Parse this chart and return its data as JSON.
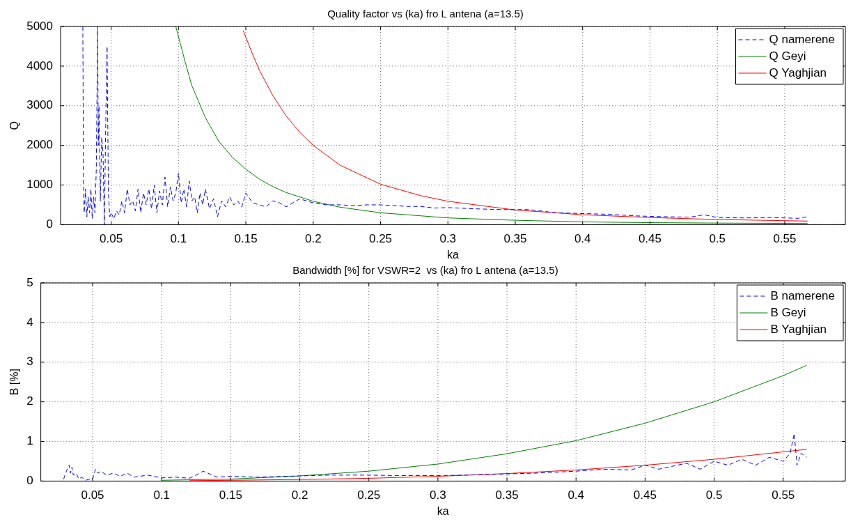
{
  "chart_data": [
    {
      "type": "line",
      "title": "Quality factor vs (ka) fro L antena (a=13.5)",
      "xlabel": "ka",
      "ylabel": "Q",
      "xlim": [
        0.0125,
        0.595
      ],
      "ylim": [
        0,
        5000
      ],
      "xticks": [
        0.05,
        0.1,
        0.15,
        0.2,
        0.25,
        0.3,
        0.35,
        0.4,
        0.45,
        0.5,
        0.55
      ],
      "yticks": [
        0,
        1000,
        2000,
        3000,
        4000,
        5000
      ],
      "grid": true,
      "legend": "top right",
      "series": [
        {
          "name": "Q namerene",
          "color": "#0000ff",
          "line_style": "dashed",
          "x": [
            0.029,
            0.0295,
            0.03,
            0.031,
            0.032,
            0.033,
            0.034,
            0.035,
            0.036,
            0.037,
            0.038,
            0.039,
            0.04,
            0.0405,
            0.041,
            0.042,
            0.043,
            0.044,
            0.045,
            0.046,
            0.047,
            0.048,
            0.049,
            0.05,
            0.052,
            0.054,
            0.056,
            0.058,
            0.06,
            0.062,
            0.064,
            0.066,
            0.068,
            0.07,
            0.072,
            0.074,
            0.076,
            0.078,
            0.08,
            0.082,
            0.084,
            0.086,
            0.088,
            0.09,
            0.092,
            0.094,
            0.096,
            0.098,
            0.1,
            0.102,
            0.104,
            0.106,
            0.108,
            0.11,
            0.112,
            0.114,
            0.116,
            0.118,
            0.12,
            0.123,
            0.126,
            0.129,
            0.132,
            0.135,
            0.138,
            0.141,
            0.144,
            0.147,
            0.15,
            0.155,
            0.16,
            0.165,
            0.17,
            0.175,
            0.18,
            0.19,
            0.2,
            0.21,
            0.22,
            0.23,
            0.24,
            0.25,
            0.26,
            0.27,
            0.28,
            0.29,
            0.3,
            0.32,
            0.34,
            0.36,
            0.38,
            0.4,
            0.42,
            0.44,
            0.46,
            0.48,
            0.49,
            0.5,
            0.52,
            0.54,
            0.56,
            0.567
          ],
          "values": [
            5000,
            1200,
            300,
            900,
            200,
            700,
            300,
            900,
            150,
            700,
            300,
            1400,
            5000,
            2000,
            3000,
            600,
            2200,
            1800,
            0,
            2500,
            4500,
            800,
            200,
            300,
            150,
            350,
            250,
            600,
            300,
            900,
            500,
            600,
            350,
            900,
            300,
            800,
            500,
            900,
            400,
            1000,
            300,
            850,
            500,
            1200,
            450,
            950,
            600,
            800,
            1300,
            550,
            900,
            450,
            1100,
            600,
            700,
            300,
            800,
            500,
            900,
            400,
            650,
            200,
            600,
            450,
            700,
            500,
            600,
            450,
            800,
            550,
            500,
            450,
            600,
            550,
            450,
            650,
            550,
            500,
            500,
            480,
            500,
            500,
            480,
            460,
            460,
            420,
            430,
            400,
            380,
            380,
            300,
            280,
            260,
            220,
            200,
            190,
            250,
            180,
            170,
            180,
            160,
            200
          ]
        },
        {
          "name": "Q Geyi",
          "color": "#008000",
          "x": [
            0.098,
            0.105,
            0.11,
            0.12,
            0.13,
            0.14,
            0.15,
            0.16,
            0.17,
            0.18,
            0.2,
            0.22,
            0.25,
            0.3,
            0.35,
            0.4,
            0.45,
            0.5,
            0.567
          ],
          "values": [
            5000,
            4100,
            3500,
            2700,
            2100,
            1700,
            1400,
            1150,
            960,
            810,
            590,
            440,
            300,
            170,
            110,
            70,
            50,
            40,
            30
          ]
        },
        {
          "name": "Q Yaghjian",
          "color": "#ff0000",
          "x": [
            0.148,
            0.155,
            0.16,
            0.17,
            0.18,
            0.19,
            0.2,
            0.22,
            0.25,
            0.28,
            0.3,
            0.35,
            0.4,
            0.45,
            0.5,
            0.567
          ],
          "values": [
            4900,
            4300,
            3900,
            3260,
            2740,
            2330,
            2000,
            1500,
            1020,
            730,
            590,
            370,
            250,
            180,
            130,
            90
          ]
        }
      ]
    },
    {
      "type": "line",
      "title": "Bandwidth [%] for VSWR=2  vs (ka) fro L antena (a=13.5)",
      "xlabel": "ka",
      "ylabel": "B [%]",
      "xlim": [
        0.0125,
        0.595
      ],
      "ylim": [
        0,
        5
      ],
      "xticks": [
        0.05,
        0.1,
        0.15,
        0.2,
        0.25,
        0.3,
        0.35,
        0.4,
        0.45,
        0.5,
        0.55
      ],
      "yticks": [
        0,
        1,
        2,
        3,
        4,
        5
      ],
      "grid": true,
      "legend": "top right",
      "series": [
        {
          "name": "B namerene",
          "color": "#0000ff",
          "line_style": "dashed",
          "x": [
            0.029,
            0.031,
            0.033,
            0.034,
            0.035,
            0.036,
            0.038,
            0.04,
            0.042,
            0.045,
            0.048,
            0.05,
            0.052,
            0.054,
            0.056,
            0.06,
            0.065,
            0.07,
            0.075,
            0.08,
            0.09,
            0.1,
            0.11,
            0.12,
            0.125,
            0.13,
            0.14,
            0.15,
            0.17,
            0.2,
            0.22,
            0.25,
            0.27,
            0.3,
            0.32,
            0.35,
            0.37,
            0.4,
            0.42,
            0.44,
            0.45,
            0.46,
            0.48,
            0.49,
            0.5,
            0.51,
            0.52,
            0.53,
            0.54,
            0.55,
            0.555,
            0.558,
            0.56,
            0.563,
            0.567
          ],
          "values": [
            0.05,
            0.25,
            0.4,
            0.2,
            0.35,
            0.15,
            0.2,
            0.05,
            0.1,
            0.02,
            0.05,
            0.04,
            0.3,
            0.2,
            0.25,
            0.15,
            0.2,
            0.12,
            0.2,
            0.1,
            0.15,
            0.08,
            0.1,
            0.07,
            0.15,
            0.25,
            0.1,
            0.12,
            0.1,
            0.13,
            0.15,
            0.15,
            0.14,
            0.14,
            0.15,
            0.18,
            0.2,
            0.25,
            0.3,
            0.28,
            0.4,
            0.3,
            0.45,
            0.3,
            0.5,
            0.4,
            0.55,
            0.4,
            0.6,
            0.5,
            0.7,
            1.2,
            0.4,
            0.7,
            0.6
          ]
        },
        {
          "name": "B Geyi",
          "color": "#008000",
          "x": [
            0.1,
            0.15,
            0.2,
            0.25,
            0.3,
            0.35,
            0.4,
            0.45,
            0.5,
            0.55,
            0.567
          ],
          "values": [
            0.02,
            0.05,
            0.13,
            0.25,
            0.43,
            0.69,
            1.02,
            1.46,
            2.0,
            2.66,
            2.92
          ]
        },
        {
          "name": "B Yaghjian",
          "color": "#ff0000",
          "x": [
            0.12,
            0.15,
            0.2,
            0.25,
            0.3,
            0.35,
            0.4,
            0.45,
            0.5,
            0.567
          ],
          "values": [
            0.01,
            0.02,
            0.04,
            0.07,
            0.12,
            0.19,
            0.28,
            0.4,
            0.55,
            0.8
          ]
        }
      ]
    }
  ]
}
